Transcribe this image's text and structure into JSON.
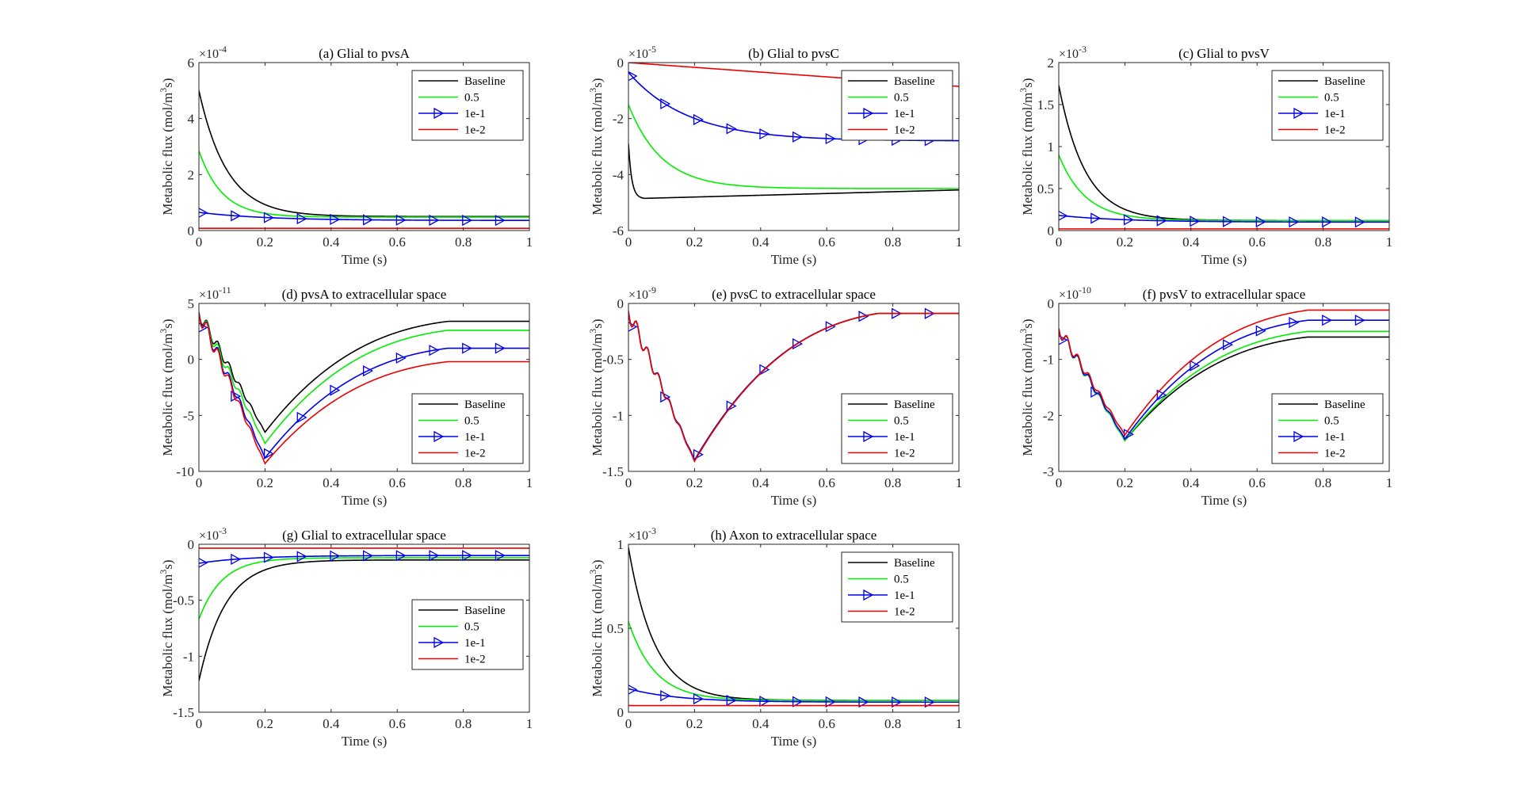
{
  "figure": {
    "legend_labels": [
      "Baseline",
      "0.5",
      "1e-1",
      "1e-2"
    ],
    "colors": {
      "Baseline": "#000000",
      "0.5": "#00ee00",
      "1e-1": "#0000ee",
      "1e-2": "#ee0000"
    },
    "marker_series": "1e-1"
  },
  "chart_data": [
    {
      "type": "line",
      "title": "(a) Glial to pvsA",
      "xlabel": "Time (s)",
      "ylabel": "Metabolic flux (mol/m³s)",
      "xlim": [
        0,
        1
      ],
      "ylim": [
        0,
        6
      ],
      "ytick_values": [
        0,
        2,
        4,
        6
      ],
      "ytick_labels": [
        "0",
        "2",
        "4",
        "6"
      ],
      "xtick_labels": [
        "0",
        "0.2",
        "0.4",
        "0.6",
        "0.8",
        "1"
      ],
      "exponent": "-4",
      "legend_position": "top-right",
      "series": [
        {
          "name": "Baseline",
          "y0": 5.0,
          "yend": 0.5,
          "tau": 0.085
        },
        {
          "name": "0.5",
          "y0": 2.85,
          "yend": 0.48,
          "tau": 0.07
        },
        {
          "name": "1e-1",
          "y0": 0.65,
          "yend": 0.36,
          "tau": 0.2
        },
        {
          "name": "1e-2",
          "y0": 0.08,
          "yend": 0.08,
          "tau": 0.2
        }
      ]
    },
    {
      "type": "line",
      "title": "(b) Glial to pvsC",
      "xlabel": "Time (s)",
      "ylabel": "Metabolic flux (mol/m³s)",
      "xlim": [
        0,
        1
      ],
      "ylim": [
        -6,
        0
      ],
      "ytick_values": [
        -6,
        -4,
        -2,
        0
      ],
      "ytick_labels": [
        "-6",
        "-4",
        "-2",
        "0"
      ],
      "xtick_labels": [
        "0",
        "0.2",
        "0.4",
        "0.6",
        "0.8",
        "1"
      ],
      "exponent": "-5",
      "legend_position": "top-right",
      "series": [
        {
          "name": "Baseline",
          "y0": -2.9,
          "ymin": -4.85,
          "tmin": 0.05,
          "yend": -4.55
        },
        {
          "name": "0.5",
          "y0": -1.5,
          "yend": -4.5,
          "tau": 0.1
        },
        {
          "name": "1e-1",
          "y0": -0.35,
          "yend": -2.8,
          "tau": 0.18
        },
        {
          "name": "1e-2",
          "y0": 0.0,
          "yend": -0.85
        }
      ]
    },
    {
      "type": "line",
      "title": "(c) Glial to pvsV",
      "xlabel": "Time (s)",
      "ylabel": "Metabolic flux (mol/m³s)",
      "xlim": [
        0,
        1
      ],
      "ylim": [
        0,
        2
      ],
      "ytick_values": [
        0,
        0.5,
        1,
        1.5,
        2
      ],
      "ytick_labels": [
        "0",
        "0.5",
        "1",
        "1.5",
        "2"
      ],
      "xtick_labels": [
        "0",
        "0.2",
        "0.4",
        "0.6",
        "0.8",
        "1"
      ],
      "exponent": "-3",
      "legend_position": "top-right",
      "series": [
        {
          "name": "Baseline",
          "y0": 1.73,
          "yend": 0.12,
          "tau": 0.08
        },
        {
          "name": "0.5",
          "y0": 0.9,
          "yend": 0.12,
          "tau": 0.08
        },
        {
          "name": "1e-1",
          "y0": 0.18,
          "yend": 0.1,
          "tau": 0.2
        },
        {
          "name": "1e-2",
          "y0": 0.02,
          "yend": 0.02,
          "tau": 0.2
        }
      ]
    },
    {
      "type": "line",
      "title": "(d) pvsA to extracellular space",
      "xlabel": "Time (s)",
      "ylabel": "Metabolic flux (mol/m³s)",
      "xlim": [
        0,
        1
      ],
      "ylim": [
        -10,
        5
      ],
      "ytick_values": [
        -10,
        -5,
        0,
        5
      ],
      "ytick_labels": [
        "-10",
        "-5",
        "0",
        "5"
      ],
      "xtick_labels": [
        "0",
        "0.2",
        "0.4",
        "0.6",
        "0.8",
        "1"
      ],
      "exponent": "-11",
      "legend_position": "bottom-right",
      "series": [
        {
          "name": "Baseline",
          "y0": 4.2,
          "ymin": -6.5,
          "yend": 3.4
        },
        {
          "name": "0.5",
          "y0": 4.2,
          "ymin": -7.5,
          "yend": 2.6
        },
        {
          "name": "1e-1",
          "y0": 4.2,
          "ymin": -8.8,
          "yend": 1.0
        },
        {
          "name": "1e-2",
          "y0": 4.2,
          "ymin": -9.3,
          "yend": -0.2
        }
      ]
    },
    {
      "type": "line",
      "title": "(e) pvsC to extracellular space",
      "xlabel": "Time (s)",
      "ylabel": "Metabolic flux (mol/m³s)",
      "xlim": [
        0,
        1
      ],
      "ylim": [
        -1.5,
        0
      ],
      "ytick_values": [
        -1.5,
        -1,
        -0.5,
        0
      ],
      "ytick_labels": [
        "-1.5",
        "-1",
        "-0.5",
        "0"
      ],
      "xtick_labels": [
        "0",
        "0.2",
        "0.4",
        "0.6",
        "0.8",
        "1"
      ],
      "exponent": "-9",
      "legend_position": "bottom-right",
      "series": [
        {
          "name": "Baseline",
          "y0": -0.07,
          "ymin": -1.4,
          "yend": -0.09
        },
        {
          "name": "0.5",
          "y0": -0.07,
          "ymin": -1.4,
          "yend": -0.09
        },
        {
          "name": "1e-1",
          "y0": -0.07,
          "ymin": -1.4,
          "yend": -0.09
        },
        {
          "name": "1e-2",
          "y0": -0.07,
          "ymin": -1.41,
          "yend": -0.09
        }
      ]
    },
    {
      "type": "line",
      "title": "(f) pvsV to extracellular space",
      "xlabel": "Time (s)",
      "ylabel": "Metabolic flux (mol/m³s)",
      "xlim": [
        0,
        1
      ],
      "ylim": [
        -3,
        0
      ],
      "ytick_values": [
        -3,
        -2,
        -1,
        0
      ],
      "ytick_labels": [
        "-3",
        "-2",
        "-1",
        "0"
      ],
      "xtick_labels": [
        "0",
        "0.2",
        "0.4",
        "0.6",
        "0.8",
        "1"
      ],
      "exponent": "-10",
      "legend_position": "bottom-right",
      "series": [
        {
          "name": "Baseline",
          "y0": -0.45,
          "ymin": -2.45,
          "yend": -0.6
        },
        {
          "name": "0.5",
          "y0": -0.45,
          "ymin": -2.45,
          "yend": -0.5
        },
        {
          "name": "1e-1",
          "y0": -0.45,
          "ymin": -2.42,
          "yend": -0.3
        },
        {
          "name": "1e-2",
          "y0": -0.45,
          "ymin": -2.35,
          "yend": -0.12
        }
      ]
    },
    {
      "type": "line",
      "title": "(g) Glial to extracellular space",
      "xlabel": "Time (s)",
      "ylabel": "Metabolic flux (mol/m³s)",
      "xlim": [
        0,
        1
      ],
      "ylim": [
        -1.5,
        0
      ],
      "ytick_values": [
        -1.5,
        -1,
        -0.5,
        0
      ],
      "ytick_labels": [
        "-1.5",
        "-1",
        "-0.5",
        "0"
      ],
      "xtick_labels": [
        "0",
        "0.2",
        "0.4",
        "0.6",
        "0.8",
        "1"
      ],
      "exponent": "-3",
      "legend_position": "right",
      "series": [
        {
          "name": "Baseline",
          "y0": -1.22,
          "yend": -0.14,
          "tau": 0.08
        },
        {
          "name": "0.5",
          "y0": -0.67,
          "yend": -0.12,
          "tau": 0.07
        },
        {
          "name": "1e-1",
          "y0": -0.17,
          "yend": -0.1,
          "tau": 0.15
        },
        {
          "name": "1e-2",
          "y0": -0.035,
          "yend": -0.035,
          "tau": 0.2
        }
      ]
    },
    {
      "type": "line",
      "title": "(h) Axon to extracellular space",
      "xlabel": "Time (s)",
      "ylabel": "Metabolic flux (mol/m³s)",
      "xlim": [
        0,
        1
      ],
      "ylim": [
        0,
        1
      ],
      "ytick_values": [
        0,
        0.5,
        1
      ],
      "ytick_labels": [
        "0",
        "0.5",
        "1"
      ],
      "xtick_labels": [
        "0",
        "0.2",
        "0.4",
        "0.6",
        "0.8",
        "1"
      ],
      "exponent": "-3",
      "legend_position": "top-right",
      "series": [
        {
          "name": "Baseline",
          "y0": 0.98,
          "yend": 0.07,
          "tau": 0.08
        },
        {
          "name": "0.5",
          "y0": 0.54,
          "yend": 0.07,
          "tau": 0.08
        },
        {
          "name": "1e-1",
          "y0": 0.14,
          "yend": 0.06,
          "tau": 0.15
        },
        {
          "name": "1e-2",
          "y0": 0.04,
          "yend": 0.04,
          "tau": 0.2
        }
      ]
    }
  ]
}
